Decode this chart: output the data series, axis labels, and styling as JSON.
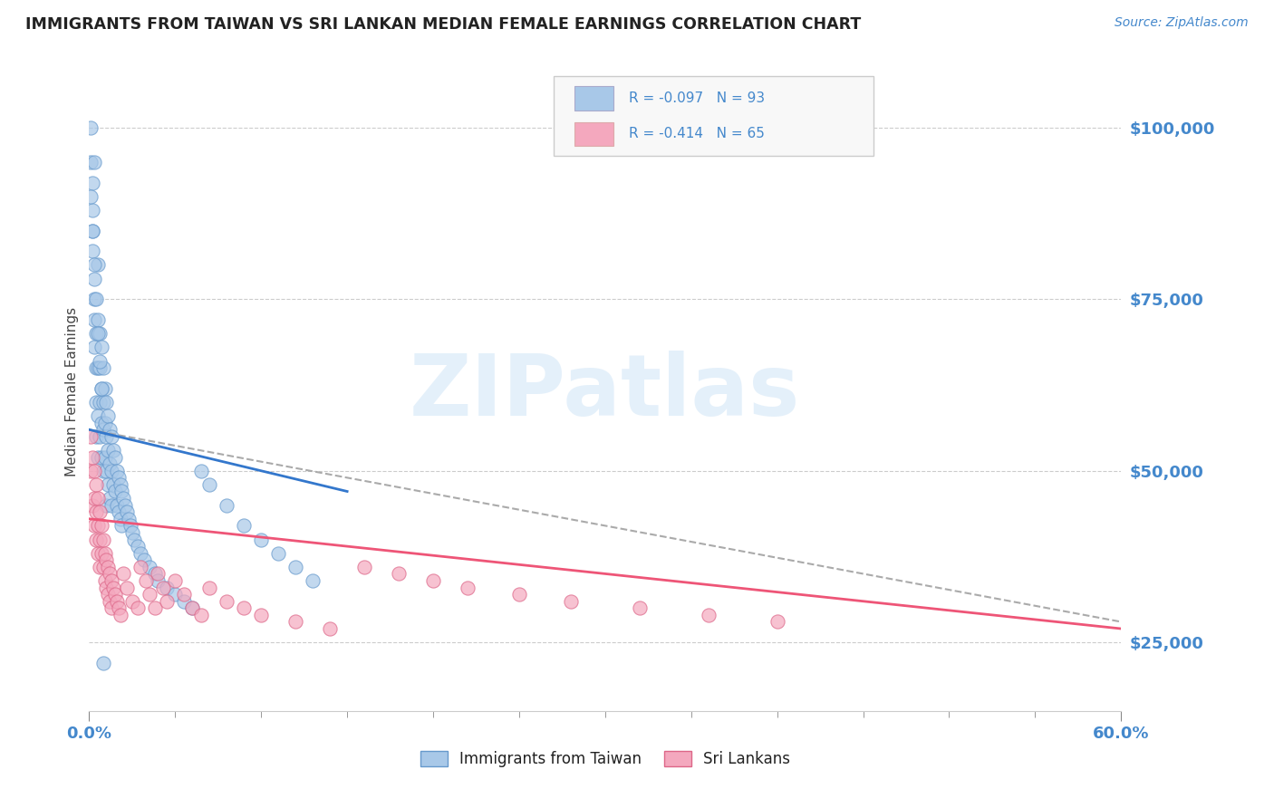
{
  "title": "IMMIGRANTS FROM TAIWAN VS SRI LANKAN MEDIAN FEMALE EARNINGS CORRELATION CHART",
  "source_text": "Source: ZipAtlas.com",
  "ylabel": "Median Female Earnings",
  "xlim": [
    0.0,
    0.6
  ],
  "ylim": [
    15000,
    108000
  ],
  "yticks": [
    25000,
    50000,
    75000,
    100000
  ],
  "ytick_labels": [
    "$25,000",
    "$50,000",
    "$75,000",
    "$100,000"
  ],
  "xtick_labels_shown": [
    "0.0%",
    "60.0%"
  ],
  "xtick_positions_shown": [
    0.0,
    0.6
  ],
  "xtick_minor_positions": [
    0.05,
    0.1,
    0.15,
    0.2,
    0.25,
    0.3,
    0.35,
    0.4,
    0.45,
    0.5,
    0.55
  ],
  "taiwan_color": "#a8c8e8",
  "srilanka_color": "#f4a8be",
  "taiwan_edge_color": "#6699cc",
  "srilanka_edge_color": "#dd6688",
  "taiwan_line_color": "#3377cc",
  "srilanka_line_color": "#ee5577",
  "dash_line_color": "#aaaaaa",
  "taiwan_R": -0.097,
  "taiwan_N": 93,
  "srilanka_R": -0.414,
  "srilanka_N": 65,
  "legend_label_taiwan": "Immigrants from Taiwan",
  "legend_label_srilanka": "Sri Lankans",
  "watermark": "ZIPatlas",
  "background_color": "#ffffff",
  "title_color": "#222222",
  "axis_label_color": "#444444",
  "tick_color": "#4488cc",
  "grid_color": "#cccccc",
  "taiwan_line_x0": 0.0,
  "taiwan_line_y0": 56000,
  "taiwan_line_x1": 0.15,
  "taiwan_line_y1": 47000,
  "srilanka_line_x0": 0.0,
  "srilanka_line_y0": 43000,
  "srilanka_line_x1": 0.6,
  "srilanka_line_y1": 27000,
  "dash_line_x0": 0.0,
  "dash_line_y0": 56000,
  "dash_line_x1": 0.6,
  "dash_line_y1": 28000,
  "taiwan_scatter_x": [
    0.001,
    0.001,
    0.002,
    0.002,
    0.002,
    0.002,
    0.003,
    0.003,
    0.003,
    0.003,
    0.003,
    0.004,
    0.004,
    0.004,
    0.004,
    0.005,
    0.005,
    0.005,
    0.005,
    0.005,
    0.006,
    0.006,
    0.006,
    0.006,
    0.007,
    0.007,
    0.007,
    0.007,
    0.008,
    0.008,
    0.008,
    0.008,
    0.009,
    0.009,
    0.009,
    0.01,
    0.01,
    0.01,
    0.01,
    0.011,
    0.011,
    0.011,
    0.012,
    0.012,
    0.012,
    0.013,
    0.013,
    0.013,
    0.014,
    0.014,
    0.015,
    0.015,
    0.016,
    0.016,
    0.017,
    0.017,
    0.018,
    0.018,
    0.019,
    0.019,
    0.02,
    0.021,
    0.022,
    0.023,
    0.024,
    0.025,
    0.026,
    0.028,
    0.03,
    0.032,
    0.035,
    0.038,
    0.04,
    0.045,
    0.05,
    0.055,
    0.06,
    0.065,
    0.07,
    0.08,
    0.09,
    0.1,
    0.11,
    0.12,
    0.13,
    0.001,
    0.002,
    0.003,
    0.004,
    0.005,
    0.006,
    0.007,
    0.008
  ],
  "taiwan_scatter_y": [
    100000,
    95000,
    92000,
    88000,
    85000,
    82000,
    78000,
    75000,
    72000,
    68000,
    95000,
    70000,
    65000,
    60000,
    55000,
    80000,
    72000,
    65000,
    58000,
    52000,
    70000,
    65000,
    60000,
    55000,
    68000,
    62000,
    57000,
    52000,
    65000,
    60000,
    56000,
    50000,
    62000,
    57000,
    52000,
    60000,
    55000,
    50000,
    45000,
    58000,
    53000,
    48000,
    56000,
    51000,
    46000,
    55000,
    50000,
    45000,
    53000,
    48000,
    52000,
    47000,
    50000,
    45000,
    49000,
    44000,
    48000,
    43000,
    47000,
    42000,
    46000,
    45000,
    44000,
    43000,
    42000,
    41000,
    40000,
    39000,
    38000,
    37000,
    36000,
    35000,
    34000,
    33000,
    32000,
    31000,
    30000,
    50000,
    48000,
    45000,
    42000,
    40000,
    38000,
    36000,
    34000,
    90000,
    85000,
    80000,
    75000,
    70000,
    66000,
    62000,
    22000
  ],
  "srilanka_scatter_x": [
    0.001,
    0.001,
    0.002,
    0.002,
    0.003,
    0.003,
    0.003,
    0.004,
    0.004,
    0.004,
    0.005,
    0.005,
    0.005,
    0.006,
    0.006,
    0.006,
    0.007,
    0.007,
    0.008,
    0.008,
    0.009,
    0.009,
    0.01,
    0.01,
    0.011,
    0.011,
    0.012,
    0.012,
    0.013,
    0.013,
    0.014,
    0.015,
    0.016,
    0.017,
    0.018,
    0.02,
    0.022,
    0.025,
    0.028,
    0.03,
    0.033,
    0.035,
    0.038,
    0.04,
    0.043,
    0.045,
    0.05,
    0.055,
    0.06,
    0.065,
    0.07,
    0.08,
    0.09,
    0.1,
    0.12,
    0.14,
    0.16,
    0.18,
    0.2,
    0.22,
    0.25,
    0.28,
    0.32,
    0.36,
    0.4
  ],
  "srilanka_scatter_y": [
    55000,
    50000,
    52000,
    45000,
    50000,
    46000,
    42000,
    48000,
    44000,
    40000,
    46000,
    42000,
    38000,
    44000,
    40000,
    36000,
    42000,
    38000,
    40000,
    36000,
    38000,
    34000,
    37000,
    33000,
    36000,
    32000,
    35000,
    31000,
    34000,
    30000,
    33000,
    32000,
    31000,
    30000,
    29000,
    35000,
    33000,
    31000,
    30000,
    36000,
    34000,
    32000,
    30000,
    35000,
    33000,
    31000,
    34000,
    32000,
    30000,
    29000,
    33000,
    31000,
    30000,
    29000,
    28000,
    27000,
    36000,
    35000,
    34000,
    33000,
    32000,
    31000,
    30000,
    29000,
    28000
  ]
}
